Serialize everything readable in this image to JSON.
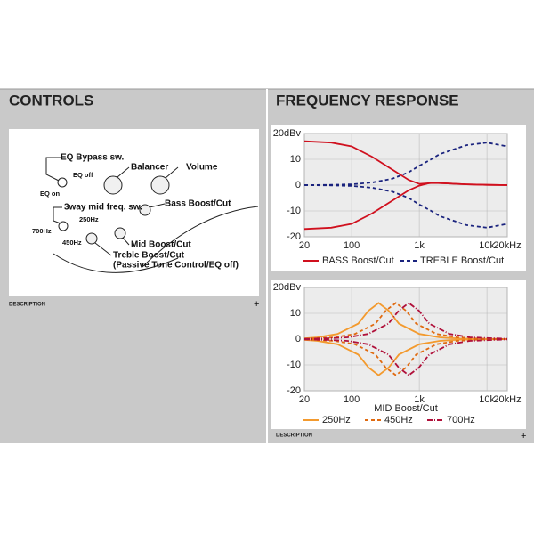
{
  "controls": {
    "title": "CONTROLS",
    "description": "DESCRIPTION",
    "expand": "+",
    "labels": [
      "EQ Bypass sw.",
      "EQ off",
      "EQ on",
      "Balancer",
      "Volume",
      "Bass Boost/Cut",
      "3way mid freq. sw.",
      "250Hz",
      "700Hz",
      "450Hz",
      "Mid Boost/Cut",
      "Treble Boost/Cut",
      "(Passive Tone Control/EQ off)"
    ]
  },
  "frequency_response": {
    "title": "FREQUENCY RESPONSE",
    "description": "DESCRIPTION",
    "expand": "+"
  },
  "chart_data": [
    {
      "type": "line",
      "log_x": true,
      "grid": true,
      "xlim": [
        20,
        20000
      ],
      "ylim": [
        -20,
        20
      ],
      "xticks": [
        20,
        100,
        {
          "value": 1000,
          "label": "1k"
        },
        {
          "value": 10000,
          "label": "10k"
        },
        {
          "value": 20000,
          "label": "20kHz"
        }
      ],
      "yticks": [
        {
          "value": 20,
          "label": "20dBv"
        },
        10,
        0,
        -10,
        -20
      ],
      "x": [
        20,
        50,
        100,
        200,
        400,
        700,
        1000,
        1500,
        2000,
        5000,
        10000,
        20000
      ],
      "series": [
        {
          "name": "BASS Boost/Cut",
          "color": "#d0101e",
          "dash": "none",
          "values": [
            17,
            16.5,
            15,
            11,
            6,
            2,
            0.5,
            0.8,
            0.8,
            0.3,
            0.1,
            0
          ],
          "cut_values": [
            -17,
            -16.5,
            -15,
            -11,
            -6,
            -2,
            -0.2,
            1,
            0.8,
            0.3,
            0.1,
            0
          ]
        },
        {
          "name": "TREBLE Boost/Cut",
          "color": "#1a237e",
          "dash": "4 3",
          "values": [
            0,
            0.1,
            0.3,
            1,
            2.5,
            5,
            7.5,
            10,
            12,
            15.5,
            16.5,
            15
          ],
          "cut_values": [
            0,
            -0.1,
            -0.3,
            -1,
            -2.5,
            -5,
            -7.5,
            -10,
            -12,
            -15.5,
            -16.5,
            -15
          ]
        }
      ]
    },
    {
      "type": "line",
      "log_x": true,
      "grid": true,
      "xlabel": "MID Boost/Cut",
      "xlim": [
        20,
        20000
      ],
      "ylim": [
        -20,
        20
      ],
      "xticks": [
        20,
        100,
        {
          "value": 1000,
          "label": "1k"
        },
        {
          "value": 10000,
          "label": "10k"
        },
        {
          "value": 20000,
          "label": "20kHz"
        }
      ],
      "yticks": [
        {
          "value": 20,
          "label": "20dBv"
        },
        10,
        0,
        -10,
        -20
      ],
      "series": [
        {
          "name": "250Hz",
          "color": "#f39a2e",
          "dash": "none",
          "x": [
            20,
            31,
            62,
            125,
            177,
            250,
            354,
            500,
            1000,
            2000,
            4000,
            20000
          ],
          "values": [
            0.3,
            0.7,
            2,
            6,
            11,
            14,
            11,
            6,
            2,
            0.7,
            0.2,
            0
          ],
          "cut_values": [
            -0.3,
            -0.7,
            -2,
            -6,
            -11,
            -14,
            -11,
            -6,
            -2,
            -0.7,
            -0.2,
            0
          ]
        },
        {
          "name": "450Hz",
          "color": "#e06a10",
          "dash": "4 3",
          "x": [
            20,
            56,
            112,
            225,
            318,
            450,
            636,
            900,
            1800,
            3600,
            7200,
            20000
          ],
          "values": [
            0.1,
            0.7,
            2,
            6,
            11,
            14,
            11,
            6,
            2,
            0.7,
            0.2,
            0
          ],
          "cut_values": [
            -0.1,
            -0.7,
            -2,
            -6,
            -11,
            -14,
            -11,
            -6,
            -2,
            -0.7,
            -0.2,
            0
          ]
        },
        {
          "name": "700Hz",
          "color": "#b0103a",
          "dash": "6 2 1 2",
          "x": [
            20,
            44,
            87,
            175,
            350,
            495,
            700,
            990,
            1400,
            2800,
            5600,
            20000
          ],
          "values": [
            0.1,
            0.3,
            0.7,
            2,
            6,
            11,
            14,
            11,
            6,
            2,
            0.7,
            0.1
          ],
          "cut_values": [
            -0.1,
            -0.3,
            -0.7,
            -2,
            -6,
            -11,
            -14,
            -11,
            -6,
            -2,
            -0.7,
            -0.1
          ]
        }
      ]
    }
  ]
}
